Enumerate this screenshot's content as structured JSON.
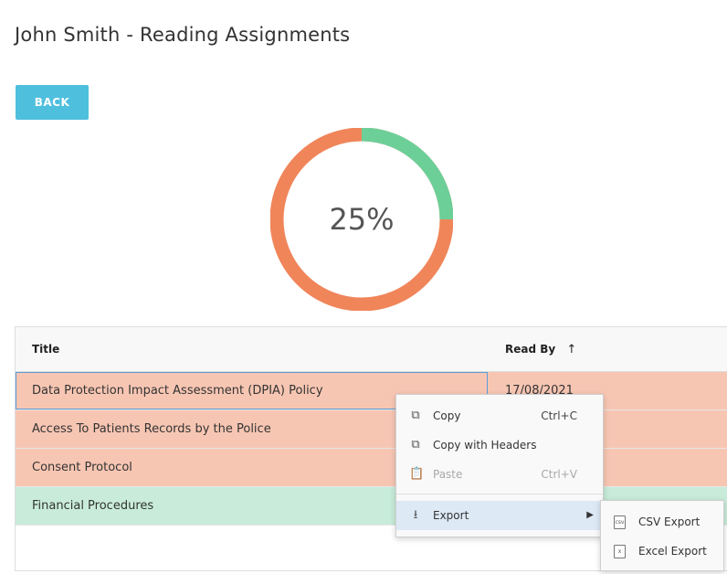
{
  "page": {
    "title": "John Smith - Reading Assignments"
  },
  "actions": {
    "back_label": "BACK"
  },
  "progress": {
    "percent_label": "25%",
    "completed_fraction": 0.25,
    "completed_color": "#6ccf98",
    "remaining_color": "#f0855a"
  },
  "table": {
    "columns": [
      {
        "label": "Title"
      },
      {
        "label": "Read By",
        "sort_icon": "arrow-up-icon",
        "sort_glyph": "↑"
      }
    ],
    "rows": [
      {
        "title": "Data Protection Impact Assessment (DPIA) Policy",
        "read_by": "17/08/2021",
        "status": "pending"
      },
      {
        "title": "Access To Patients Records by the Police",
        "read_by": "",
        "status": "pending"
      },
      {
        "title": "Consent Protocol",
        "read_by": "",
        "status": "pending"
      },
      {
        "title": "Financial Procedures",
        "read_by": "",
        "status": "done"
      }
    ]
  },
  "context_menu": {
    "items": [
      {
        "label": "Copy",
        "shortcut": "Ctrl+C",
        "icon": "copy-icon"
      },
      {
        "label": "Copy with Headers",
        "shortcut": "",
        "icon": "copy-icon"
      },
      {
        "label": "Paste",
        "shortcut": "Ctrl+V",
        "icon": "clipboard-icon",
        "disabled": true
      },
      {
        "label": "Export",
        "shortcut": "",
        "icon": "download-icon",
        "submenu": true
      }
    ],
    "submenu": [
      {
        "label": "CSV Export",
        "icon": "csv-file-icon",
        "icon_text": "csv"
      },
      {
        "label": "Excel Export",
        "icon": "excel-file-icon",
        "icon_text": "x"
      }
    ]
  }
}
